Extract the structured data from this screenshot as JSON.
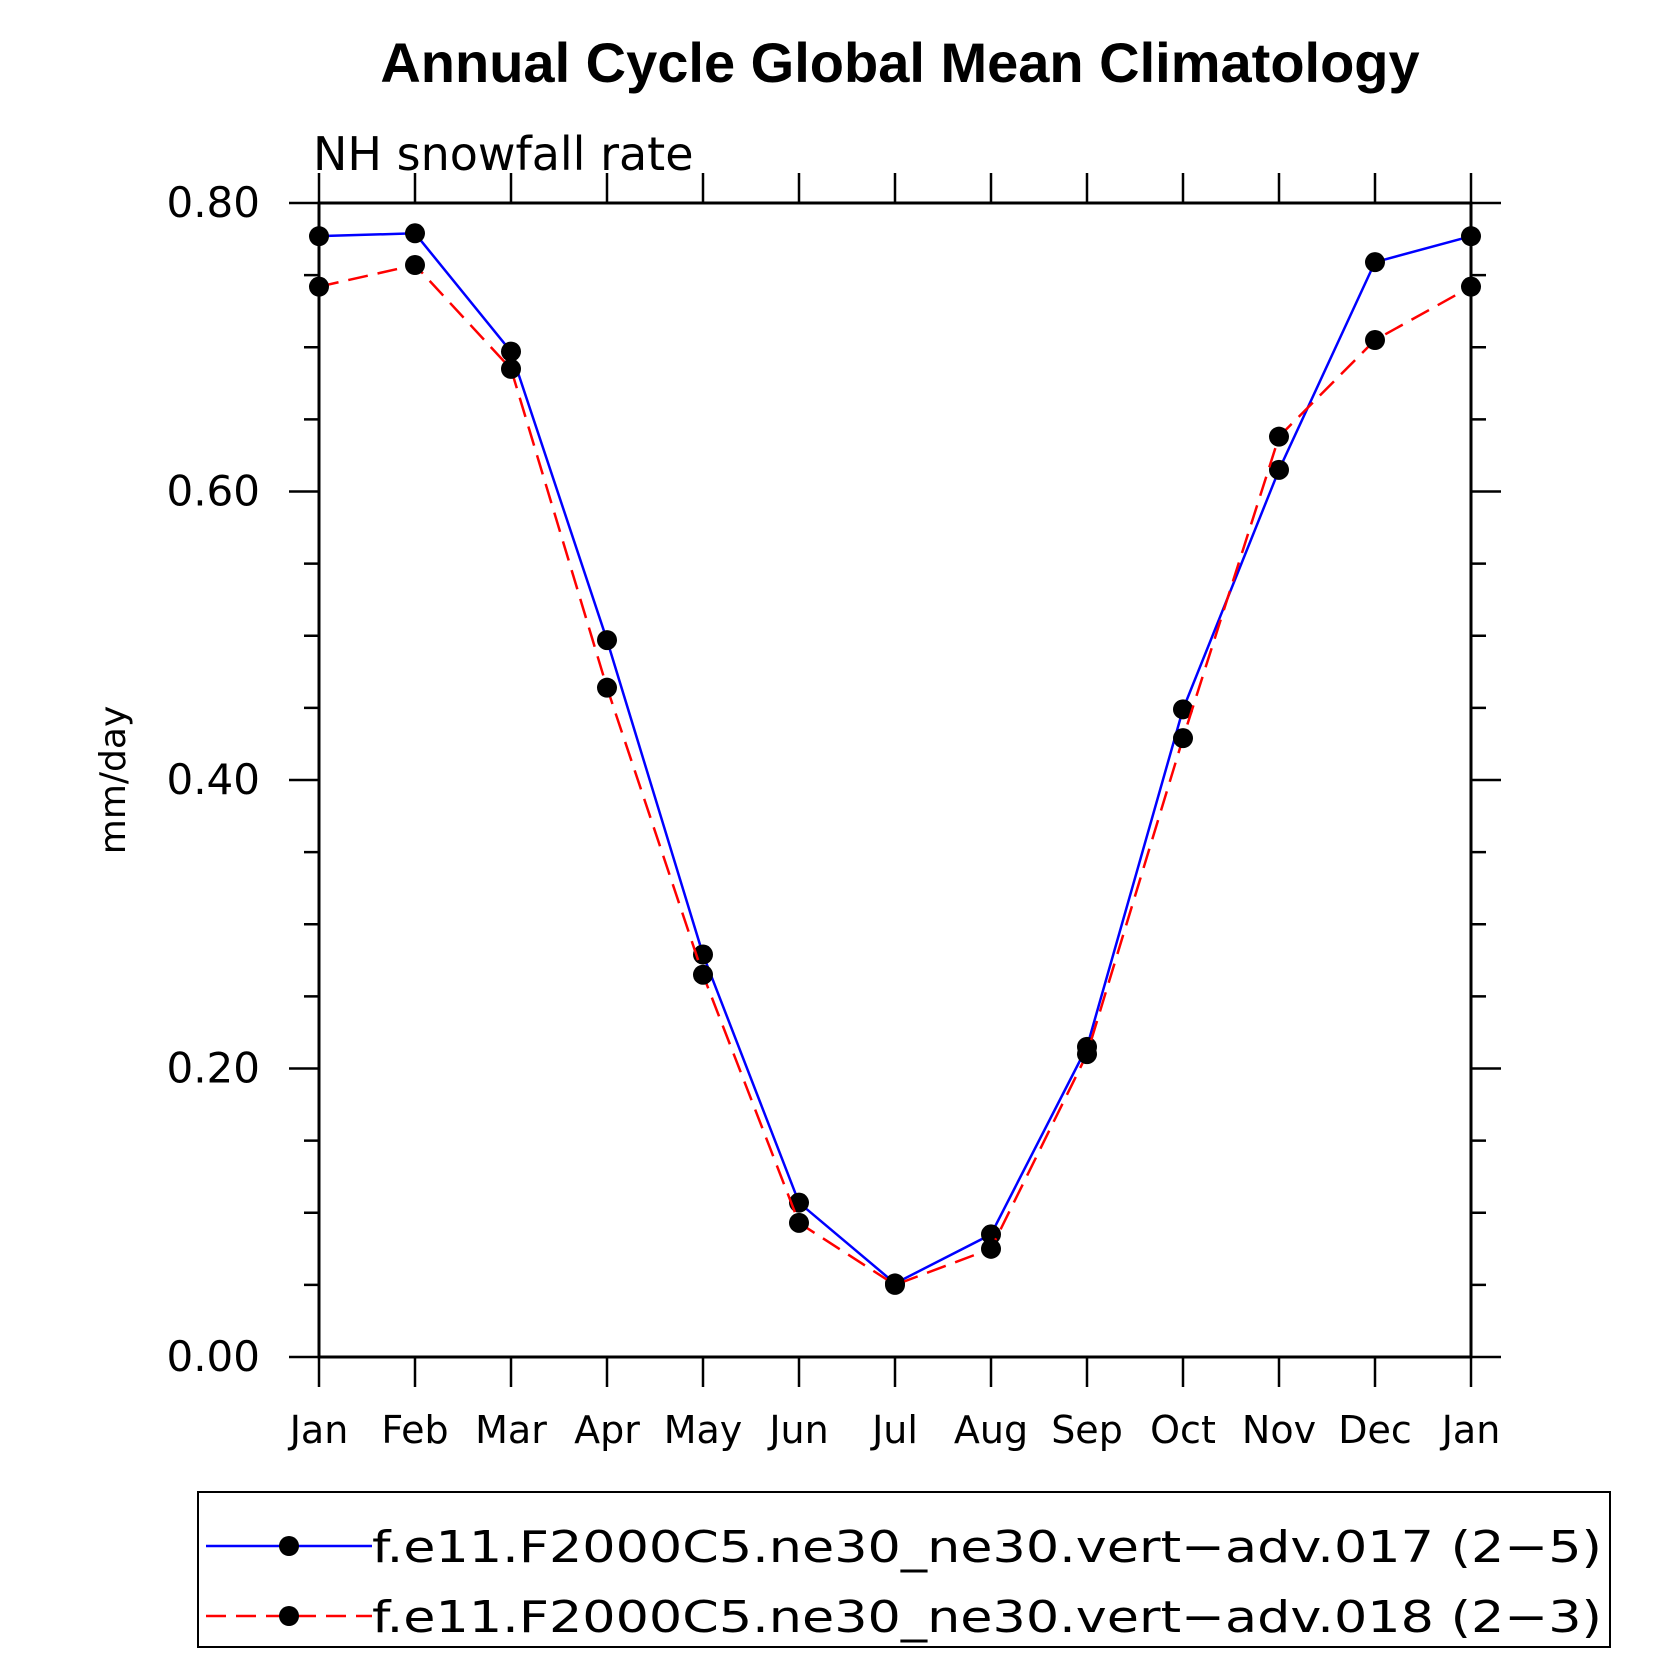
{
  "chart_data": {
    "type": "line",
    "title": "Annual Cycle Global Mean Climatology",
    "subtitle": "NH snowfall rate",
    "xlabel": "",
    "ylabel": "mm/day",
    "categories": [
      "Jan",
      "Feb",
      "Mar",
      "Apr",
      "May",
      "Jun",
      "Jul",
      "Aug",
      "Sep",
      "Oct",
      "Nov",
      "Dec",
      "Jan"
    ],
    "ylim": [
      0,
      0.8
    ],
    "yticks": [
      "0.00",
      "0.20",
      "0.40",
      "0.60",
      "0.80"
    ],
    "grid": false,
    "legend_position": "bottom",
    "series": [
      {
        "name": "f.e11.F2000C5.ne30_ne30.vert−adv.017 (2−5)",
        "color": "#0000ff",
        "dash": "solid",
        "values": [
          0.777,
          0.779,
          0.697,
          0.497,
          0.279,
          0.107,
          0.051,
          0.085,
          0.215,
          0.449,
          0.615,
          0.759,
          0.777
        ]
      },
      {
        "name": "f.e11.F2000C5.ne30_ne30.vert−adv.018 (2−3)",
        "color": "#ff0000",
        "dash": "dashed",
        "values": [
          0.742,
          0.757,
          0.685,
          0.464,
          0.265,
          0.093,
          0.05,
          0.075,
          0.21,
          0.429,
          0.638,
          0.705,
          0.742
        ]
      }
    ]
  }
}
